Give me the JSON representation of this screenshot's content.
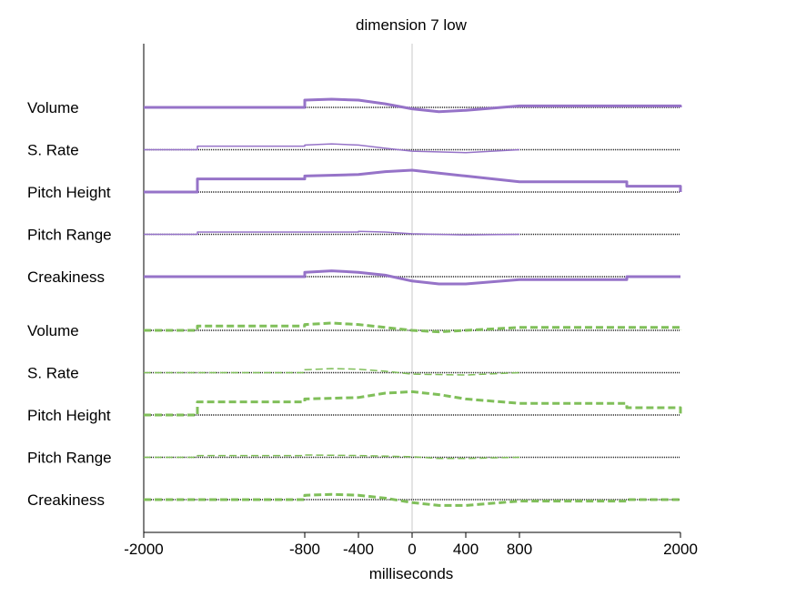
{
  "chart_data": {
    "type": "line",
    "title": "dimension  7 low",
    "xlabel": "milliseconds",
    "ylabel": "",
    "xlim": [
      -2000,
      2000
    ],
    "xticks": [
      -2000,
      -800,
      -400,
      0,
      400,
      800,
      2000
    ],
    "grid": false,
    "legend": "none",
    "groups": [
      {
        "style": "solid",
        "color": "#9673c8",
        "series": [
          {
            "name": "Volume",
            "x": [
              -2000,
              -800,
              -600,
              -400,
              -200,
              0,
              200,
              400,
              800,
              1600,
              2000
            ],
            "y": [
              0,
              0.25,
              0.28,
              0.25,
              0.12,
              -0.05,
              -0.15,
              -0.1,
              0.05,
              0.05,
              0
            ],
            "thickness": 3
          },
          {
            "name": "S. Rate",
            "x": [
              -2000,
              -1600,
              -800,
              -600,
              -400,
              -200,
              0,
              400,
              800
            ],
            "y": [
              0,
              0.12,
              0.16,
              0.2,
              0.16,
              0.05,
              -0.05,
              -0.1,
              0
            ],
            "thickness": 1.5
          },
          {
            "name": "Pitch Height",
            "x": [
              -2000,
              -1600,
              -800,
              -400,
              -200,
              0,
              200,
              400,
              800,
              1600,
              2000
            ],
            "y": [
              0,
              0.45,
              0.55,
              0.6,
              0.7,
              0.75,
              0.65,
              0.55,
              0.35,
              0.2,
              0
            ],
            "thickness": 3
          },
          {
            "name": "Pitch Range",
            "x": [
              -2000,
              -1600,
              -400,
              -200,
              0,
              400,
              800
            ],
            "y": [
              0,
              0.08,
              0.1,
              0.08,
              0.02,
              -0.02,
              0
            ],
            "thickness": 1.5
          },
          {
            "name": "Creakiness",
            "x": [
              -2000,
              -800,
              -600,
              -400,
              -200,
              0,
              200,
              400,
              800,
              1600,
              2000
            ],
            "y": [
              0,
              0.15,
              0.2,
              0.15,
              0.05,
              -0.15,
              -0.25,
              -0.25,
              -0.1,
              0,
              0
            ],
            "thickness": 3
          }
        ]
      },
      {
        "style": "dashed",
        "color": "#80bf5a",
        "series": [
          {
            "name": "Volume",
            "x": [
              -2000,
              -1600,
              -800,
              -600,
              -400,
              -200,
              0,
              200,
              400,
              800,
              1600,
              2000
            ],
            "y": [
              0,
              0.15,
              0.2,
              0.25,
              0.2,
              0.1,
              0,
              -0.05,
              0,
              0.1,
              0.1,
              0
            ],
            "thickness": 3
          },
          {
            "name": "S. Rate",
            "x": [
              -2000,
              -800,
              -600,
              -400,
              -200,
              0,
              400,
              800
            ],
            "y": [
              0,
              0.1,
              0.14,
              0.12,
              0.05,
              -0.05,
              -0.08,
              0
            ],
            "thickness": 1.5
          },
          {
            "name": "Pitch Height",
            "x": [
              -2000,
              -1600,
              -800,
              -400,
              -200,
              0,
              200,
              400,
              800,
              1600,
              2000
            ],
            "y": [
              0,
              0.45,
              0.55,
              0.6,
              0.75,
              0.8,
              0.7,
              0.55,
              0.4,
              0.25,
              0
            ],
            "thickness": 3
          },
          {
            "name": "Pitch Range",
            "x": [
              -2000,
              -1600,
              -800,
              -400,
              0,
              200,
              400,
              800
            ],
            "y": [
              0,
              0.06,
              0.08,
              0.06,
              0.02,
              -0.04,
              -0.04,
              0
            ],
            "thickness": 1.5
          },
          {
            "name": "Creakiness",
            "x": [
              -2000,
              -800,
              -600,
              -400,
              -200,
              0,
              200,
              400,
              800,
              1600,
              2000
            ],
            "y": [
              0,
              0.15,
              0.18,
              0.15,
              0.05,
              -0.1,
              -0.2,
              -0.2,
              -0.05,
              0,
              0
            ],
            "thickness": 3
          }
        ]
      }
    ]
  }
}
